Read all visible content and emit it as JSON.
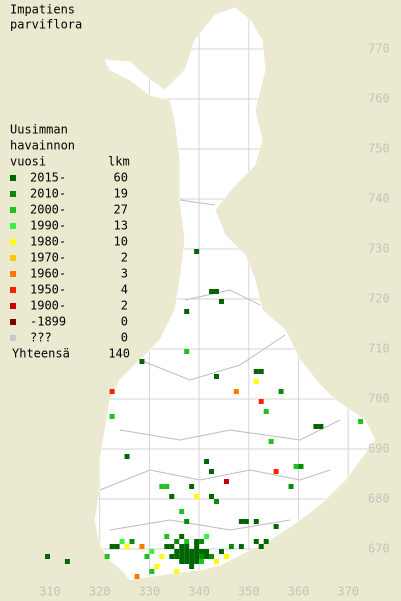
{
  "map": {
    "title": [
      "Impatiens",
      "parviflora"
    ],
    "legend": {
      "heading": [
        "Uusimman",
        "havainnon",
        "vuosi"
      ],
      "count_heading": "lkm",
      "rows": [
        {
          "label": "2015-",
          "count": 60,
          "color": "#006400"
        },
        {
          "label": "2010-",
          "count": 19,
          "color": "#088a08"
        },
        {
          "label": "2000-",
          "count": 27,
          "color": "#1fc01f"
        },
        {
          "label": "1990-",
          "count": 13,
          "color": "#3cf03c"
        },
        {
          "label": "1980-",
          "count": 10,
          "color": "#ffff00"
        },
        {
          "label": "1970-",
          "count": 2,
          "color": "#ffc800"
        },
        {
          "label": "1960-",
          "count": 3,
          "color": "#ff7800"
        },
        {
          "label": "1950-",
          "count": 4,
          "color": "#ff2000"
        },
        {
          "label": "1900-",
          "count": 2,
          "color": "#c80000"
        },
        {
          "label": "-1899",
          "count": 0,
          "color": "#800000"
        },
        {
          "label": "???",
          "count": 0,
          "color": "#c8c8c8"
        }
      ],
      "total_label": "Yhteensä",
      "total": 140
    },
    "xticks": [
      310,
      320,
      330,
      340,
      350,
      360,
      370
    ],
    "yticks": [
      670,
      680,
      690,
      700,
      710,
      720,
      730,
      740,
      750,
      760,
      770
    ],
    "squares": [
      [
        339,
        729,
        0
      ],
      [
        342,
        721,
        0
      ],
      [
        343,
        721,
        0
      ],
      [
        344,
        719,
        0
      ],
      [
        337,
        717,
        0
      ],
      [
        337,
        709,
        2
      ],
      [
        328,
        707,
        0
      ],
      [
        343,
        704,
        0
      ],
      [
        347,
        701,
        6
      ],
      [
        351,
        705,
        0
      ],
      [
        352,
        705,
        0
      ],
      [
        322,
        701,
        7
      ],
      [
        351,
        703,
        4
      ],
      [
        353,
        697,
        2
      ],
      [
        356,
        701,
        1
      ],
      [
        352,
        699,
        7
      ],
      [
        363,
        694,
        0
      ],
      [
        364,
        694,
        0
      ],
      [
        372,
        695,
        2
      ],
      [
        322,
        696,
        2
      ],
      [
        354,
        691,
        2
      ],
      [
        325,
        688,
        0
      ],
      [
        341,
        687,
        0
      ],
      [
        342,
        685,
        0
      ],
      [
        355,
        685,
        7
      ],
      [
        359,
        686,
        2
      ],
      [
        360,
        686,
        1
      ],
      [
        345,
        683,
        8
      ],
      [
        332,
        682,
        2
      ],
      [
        333,
        682,
        2
      ],
      [
        338,
        682,
        0
      ],
      [
        339,
        680,
        4
      ],
      [
        334,
        680,
        0
      ],
      [
        342,
        680,
        0
      ],
      [
        343,
        679,
        1
      ],
      [
        336,
        677,
        2
      ],
      [
        337,
        675,
        1
      ],
      [
        348,
        675,
        0
      ],
      [
        349,
        675,
        0
      ],
      [
        351,
        675,
        0
      ],
      [
        352,
        670,
        0
      ],
      [
        355,
        674,
        0
      ],
      [
        358,
        682,
        1
      ],
      [
        322,
        670,
        0
      ],
      [
        323,
        670,
        0
      ],
      [
        325,
        670,
        4
      ],
      [
        328,
        670,
        6
      ],
      [
        313,
        667,
        0
      ],
      [
        309,
        668,
        0
      ],
      [
        321,
        668,
        2
      ],
      [
        332,
        668,
        4
      ],
      [
        331,
        666,
        4
      ],
      [
        335,
        665,
        4
      ],
      [
        338,
        666,
        0
      ],
      [
        343,
        667,
        4
      ],
      [
        345,
        668,
        4
      ],
      [
        348,
        670,
        0
      ],
      [
        327,
        664,
        6
      ],
      [
        330,
        665,
        2
      ],
      [
        351,
        671,
        0
      ],
      [
        353,
        671,
        0
      ],
      [
        333,
        670,
        0
      ],
      [
        334,
        670,
        0
      ],
      [
        335,
        669,
        0
      ],
      [
        336,
        669,
        0
      ],
      [
        337,
        669,
        0
      ],
      [
        338,
        669,
        0
      ],
      [
        339,
        669,
        0
      ],
      [
        340,
        669,
        0
      ],
      [
        341,
        669,
        0
      ],
      [
        334,
        668,
        0
      ],
      [
        335,
        668,
        0
      ],
      [
        336,
        668,
        0
      ],
      [
        337,
        668,
        0
      ],
      [
        338,
        668,
        0
      ],
      [
        339,
        668,
        0
      ],
      [
        340,
        668,
        1
      ],
      [
        341,
        668,
        0
      ],
      [
        342,
        668,
        1
      ],
      [
        336,
        667,
        0
      ],
      [
        337,
        667,
        0
      ],
      [
        338,
        667,
        0
      ],
      [
        339,
        667,
        0
      ],
      [
        340,
        667,
        2
      ],
      [
        335,
        671,
        1
      ],
      [
        337,
        671,
        2
      ],
      [
        339,
        671,
        0
      ],
      [
        340,
        671,
        1
      ],
      [
        333,
        672,
        2
      ],
      [
        336,
        672,
        0
      ],
      [
        341,
        672,
        3
      ],
      [
        344,
        669,
        0
      ],
      [
        346,
        670,
        1
      ],
      [
        330,
        669,
        3
      ],
      [
        329,
        668,
        2
      ],
      [
        326,
        671,
        1
      ],
      [
        324,
        671,
        3
      ],
      [
        339,
        670,
        0
      ],
      [
        336,
        670,
        0
      ],
      [
        337,
        670,
        0
      ]
    ]
  }
}
